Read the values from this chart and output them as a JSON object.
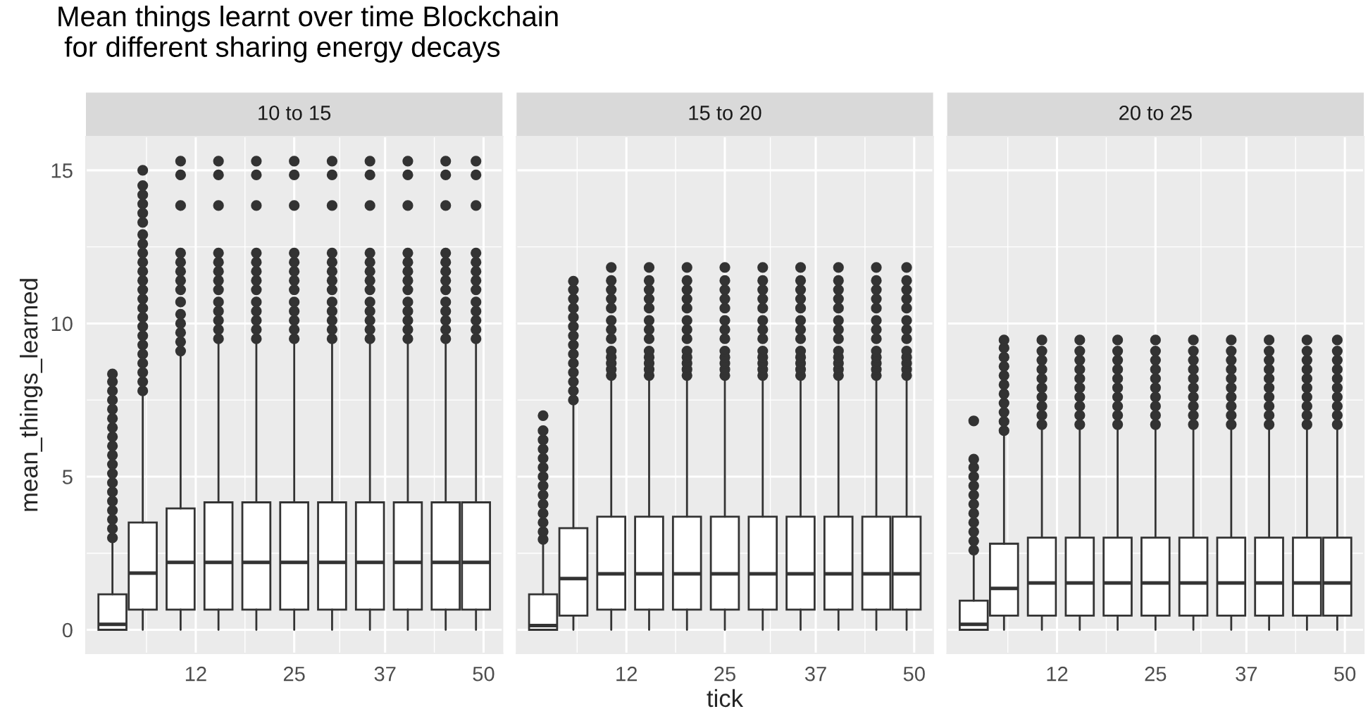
{
  "chart_data": [
    {
      "type": "box",
      "title": "10 to 15",
      "ylabel": "mean_things_learned",
      "annotations": [
        "Mean things learnt over time Blockchain\n for different sharing energy decays"
      ],
      "x": [
        1,
        5,
        10,
        15,
        20,
        25,
        30,
        35,
        40,
        45,
        49
      ],
      "boxes": [
        {
          "low": 0,
          "q1": 0,
          "median": 0.18,
          "q3": 1.16,
          "high": 2.9,
          "outliers": [
            3.0,
            3.3,
            3.6,
            3.9,
            4.2,
            4.5,
            4.8,
            5.1,
            5.4,
            5.7,
            6.0,
            6.3,
            6.6,
            6.9,
            7.2,
            7.5,
            7.8,
            8.1,
            8.35
          ]
        },
        {
          "low": 0,
          "q1": 0.66,
          "median": 1.85,
          "q3": 3.5,
          "high": 7.74,
          "outliers": [
            7.8,
            8.1,
            8.4,
            8.7,
            9.0,
            9.3,
            9.6,
            9.9,
            10.2,
            10.5,
            10.8,
            11.1,
            11.4,
            11.7,
            12.0,
            12.3,
            12.6,
            12.9,
            13.3,
            13.6,
            13.9,
            14.2,
            14.5,
            15.0
          ]
        },
        {
          "low": 0,
          "q1": 0.66,
          "median": 2.2,
          "q3": 3.96,
          "high": 9.05,
          "outliers": [
            9.1,
            9.4,
            9.7,
            10.0,
            10.3,
            10.7,
            11.1,
            11.4,
            11.7,
            12.0,
            12.3,
            13.85,
            14.85,
            15.3
          ]
        },
        {
          "low": 0,
          "q1": 0.66,
          "median": 2.2,
          "q3": 4.16,
          "high": 9.42,
          "outliers": [
            9.5,
            9.8,
            10.1,
            10.4,
            10.7,
            11.1,
            11.4,
            11.7,
            12.0,
            12.3,
            13.85,
            14.85,
            15.3
          ]
        },
        {
          "low": 0,
          "q1": 0.66,
          "median": 2.2,
          "q3": 4.16,
          "high": 9.42,
          "outliers": [
            9.5,
            9.8,
            10.1,
            10.4,
            10.7,
            11.1,
            11.4,
            11.7,
            12.0,
            12.3,
            13.85,
            14.85,
            15.3
          ]
        },
        {
          "low": 0,
          "q1": 0.66,
          "median": 2.2,
          "q3": 4.16,
          "high": 9.42,
          "outliers": [
            9.5,
            9.8,
            10.1,
            10.4,
            10.7,
            11.1,
            11.4,
            11.7,
            12.0,
            12.3,
            13.85,
            14.85,
            15.3
          ]
        },
        {
          "low": 0,
          "q1": 0.66,
          "median": 2.2,
          "q3": 4.16,
          "high": 9.42,
          "outliers": [
            9.5,
            9.8,
            10.1,
            10.4,
            10.7,
            11.1,
            11.4,
            11.7,
            12.0,
            12.3,
            13.85,
            14.85,
            15.3
          ]
        },
        {
          "low": 0,
          "q1": 0.66,
          "median": 2.2,
          "q3": 4.16,
          "high": 9.42,
          "outliers": [
            9.5,
            9.8,
            10.1,
            10.4,
            10.7,
            11.1,
            11.4,
            11.7,
            12.0,
            12.3,
            13.85,
            14.85,
            15.3
          ]
        },
        {
          "low": 0,
          "q1": 0.66,
          "median": 2.2,
          "q3": 4.16,
          "high": 9.42,
          "outliers": [
            9.5,
            9.8,
            10.1,
            10.4,
            10.7,
            11.1,
            11.4,
            11.7,
            12.0,
            12.3,
            13.85,
            14.85,
            15.3
          ]
        },
        {
          "low": 0,
          "q1": 0.66,
          "median": 2.2,
          "q3": 4.16,
          "high": 9.42,
          "outliers": [
            9.5,
            9.8,
            10.1,
            10.4,
            10.7,
            11.1,
            11.4,
            11.7,
            12.0,
            12.3,
            13.85,
            14.85,
            15.3
          ]
        },
        {
          "low": 0,
          "q1": 0.66,
          "median": 2.2,
          "q3": 4.16,
          "high": 9.42,
          "outliers": [
            9.5,
            9.8,
            10.1,
            10.4,
            10.7,
            11.1,
            11.4,
            11.7,
            12.0,
            12.3,
            13.85,
            14.85,
            15.3
          ]
        }
      ],
      "xlim": [
        -2.5,
        52.5
      ],
      "xticks": [
        12,
        25,
        37,
        50
      ],
      "ylim": [
        -0.77,
        16.1
      ],
      "yticks": [
        0,
        5,
        10,
        15
      ],
      "grid": true
    },
    {
      "type": "box",
      "title": "15 to 20",
      "xlabel": "tick",
      "tick_labels": "x",
      "x": [
        1,
        5,
        10,
        15,
        20,
        25,
        30,
        35,
        40,
        45,
        49
      ],
      "boxes": [
        {
          "low": 0,
          "q1": 0,
          "median": 0.14,
          "q3": 1.16,
          "high": 2.9,
          "outliers": [
            2.95,
            3.2,
            3.5,
            3.8,
            4.1,
            4.4,
            4.7,
            5.0,
            5.3,
            5.6,
            5.9,
            6.2,
            6.5,
            6.99
          ]
        },
        {
          "low": 0,
          "q1": 0.46,
          "median": 1.67,
          "q3": 3.32,
          "high": 7.48,
          "outliers": [
            7.5,
            7.8,
            8.1,
            8.4,
            8.7,
            9.0,
            9.3,
            9.6,
            9.9,
            10.2,
            10.5,
            10.8,
            11.1,
            11.38
          ]
        },
        {
          "low": 0,
          "q1": 0.66,
          "median": 1.83,
          "q3": 3.69,
          "high": 8.2,
          "outliers": [
            8.3,
            8.5,
            8.7,
            8.9,
            9.1,
            9.5,
            9.8,
            10.1,
            10.5,
            10.8,
            11.1,
            11.4,
            11.83
          ]
        },
        {
          "low": 0,
          "q1": 0.66,
          "median": 1.83,
          "q3": 3.69,
          "high": 8.2,
          "outliers": [
            8.3,
            8.5,
            8.7,
            8.9,
            9.1,
            9.5,
            9.8,
            10.1,
            10.5,
            10.8,
            11.1,
            11.4,
            11.83
          ]
        },
        {
          "low": 0,
          "q1": 0.66,
          "median": 1.83,
          "q3": 3.69,
          "high": 8.2,
          "outliers": [
            8.3,
            8.5,
            8.7,
            8.9,
            9.1,
            9.5,
            9.8,
            10.1,
            10.5,
            10.8,
            11.1,
            11.4,
            11.83
          ]
        },
        {
          "low": 0,
          "q1": 0.66,
          "median": 1.83,
          "q3": 3.69,
          "high": 8.2,
          "outliers": [
            8.3,
            8.5,
            8.7,
            8.9,
            9.1,
            9.5,
            9.8,
            10.1,
            10.5,
            10.8,
            11.1,
            11.4,
            11.83
          ]
        },
        {
          "low": 0,
          "q1": 0.66,
          "median": 1.83,
          "q3": 3.69,
          "high": 8.2,
          "outliers": [
            8.3,
            8.5,
            8.7,
            8.9,
            9.1,
            9.5,
            9.8,
            10.1,
            10.5,
            10.8,
            11.1,
            11.4,
            11.83
          ]
        },
        {
          "low": 0,
          "q1": 0.66,
          "median": 1.83,
          "q3": 3.69,
          "high": 8.2,
          "outliers": [
            8.3,
            8.5,
            8.7,
            8.9,
            9.1,
            9.5,
            9.8,
            10.1,
            10.5,
            10.8,
            11.1,
            11.4,
            11.83
          ]
        },
        {
          "low": 0,
          "q1": 0.66,
          "median": 1.83,
          "q3": 3.69,
          "high": 8.2,
          "outliers": [
            8.3,
            8.5,
            8.7,
            8.9,
            9.1,
            9.5,
            9.8,
            10.1,
            10.5,
            10.8,
            11.1,
            11.4,
            11.83
          ]
        },
        {
          "low": 0,
          "q1": 0.66,
          "median": 1.83,
          "q3": 3.69,
          "high": 8.2,
          "outliers": [
            8.3,
            8.5,
            8.7,
            8.9,
            9.1,
            9.5,
            9.8,
            10.1,
            10.5,
            10.8,
            11.1,
            11.4,
            11.83
          ]
        },
        {
          "low": 0,
          "q1": 0.66,
          "median": 1.83,
          "q3": 3.69,
          "high": 8.2,
          "outliers": [
            8.3,
            8.5,
            8.7,
            8.9,
            9.1,
            9.5,
            9.8,
            10.1,
            10.5,
            10.8,
            11.1,
            11.4,
            11.83
          ]
        }
      ],
      "xlim": [
        -2.5,
        52.5
      ],
      "xticks": [
        12,
        25,
        37,
        50
      ],
      "ylim": [
        -0.77,
        16.1
      ],
      "yticks": [
        0,
        5,
        10,
        15
      ],
      "grid": true
    },
    {
      "type": "box",
      "title": "20 to 25",
      "tick_labels": "x",
      "x": [
        1,
        5,
        10,
        15,
        20,
        25,
        30,
        35,
        40,
        45,
        49
      ],
      "boxes": [
        {
          "low": 0,
          "q1": 0,
          "median": 0.18,
          "q3": 0.95,
          "high": 2.54,
          "outliers": [
            2.6,
            2.9,
            3.2,
            3.5,
            3.8,
            4.1,
            4.4,
            4.7,
            5.0,
            5.3,
            5.57,
            6.82
          ]
        },
        {
          "low": 0,
          "q1": 0.46,
          "median": 1.35,
          "q3": 2.81,
          "high": 6.41,
          "outliers": [
            6.5,
            6.8,
            7.1,
            7.4,
            7.7,
            8.0,
            8.3,
            8.6,
            8.9,
            9.2,
            9.46
          ]
        },
        {
          "low": 0,
          "q1": 0.46,
          "median": 1.53,
          "q3": 3.01,
          "high": 6.67,
          "outliers": [
            6.7,
            7.0,
            7.3,
            7.6,
            7.9,
            8.2,
            8.5,
            8.8,
            9.1,
            9.46
          ]
        },
        {
          "low": 0,
          "q1": 0.46,
          "median": 1.53,
          "q3": 3.01,
          "high": 6.67,
          "outliers": [
            6.7,
            7.0,
            7.3,
            7.6,
            7.9,
            8.2,
            8.5,
            8.8,
            9.1,
            9.46
          ]
        },
        {
          "low": 0,
          "q1": 0.46,
          "median": 1.53,
          "q3": 3.01,
          "high": 6.67,
          "outliers": [
            6.7,
            7.0,
            7.3,
            7.6,
            7.9,
            8.2,
            8.5,
            8.8,
            9.1,
            9.46
          ]
        },
        {
          "low": 0,
          "q1": 0.46,
          "median": 1.53,
          "q3": 3.01,
          "high": 6.67,
          "outliers": [
            6.7,
            7.0,
            7.3,
            7.6,
            7.9,
            8.2,
            8.5,
            8.8,
            9.1,
            9.46
          ]
        },
        {
          "low": 0,
          "q1": 0.46,
          "median": 1.53,
          "q3": 3.01,
          "high": 6.67,
          "outliers": [
            6.7,
            7.0,
            7.3,
            7.6,
            7.9,
            8.2,
            8.5,
            8.8,
            9.1,
            9.46
          ]
        },
        {
          "low": 0,
          "q1": 0.46,
          "median": 1.53,
          "q3": 3.01,
          "high": 6.67,
          "outliers": [
            6.7,
            7.0,
            7.3,
            7.6,
            7.9,
            8.2,
            8.5,
            8.8,
            9.1,
            9.46
          ]
        },
        {
          "low": 0,
          "q1": 0.46,
          "median": 1.53,
          "q3": 3.01,
          "high": 6.67,
          "outliers": [
            6.7,
            7.0,
            7.3,
            7.6,
            7.9,
            8.2,
            8.5,
            8.8,
            9.1,
            9.46
          ]
        },
        {
          "low": 0,
          "q1": 0.46,
          "median": 1.53,
          "q3": 3.01,
          "high": 6.67,
          "outliers": [
            6.7,
            7.0,
            7.3,
            7.6,
            7.9,
            8.2,
            8.5,
            8.8,
            9.1,
            9.46
          ]
        },
        {
          "low": 0,
          "q1": 0.46,
          "median": 1.53,
          "q3": 3.01,
          "high": 6.67,
          "outliers": [
            6.7,
            7.0,
            7.3,
            7.6,
            7.9,
            8.2,
            8.5,
            8.8,
            9.1,
            9.46
          ]
        }
      ],
      "xlim": [
        -2.5,
        52.5
      ],
      "xticks": [
        12,
        25,
        37,
        50
      ],
      "ylim": [
        -0.77,
        16.1
      ],
      "yticks": [
        0,
        5,
        10,
        15
      ],
      "grid": true
    }
  ]
}
